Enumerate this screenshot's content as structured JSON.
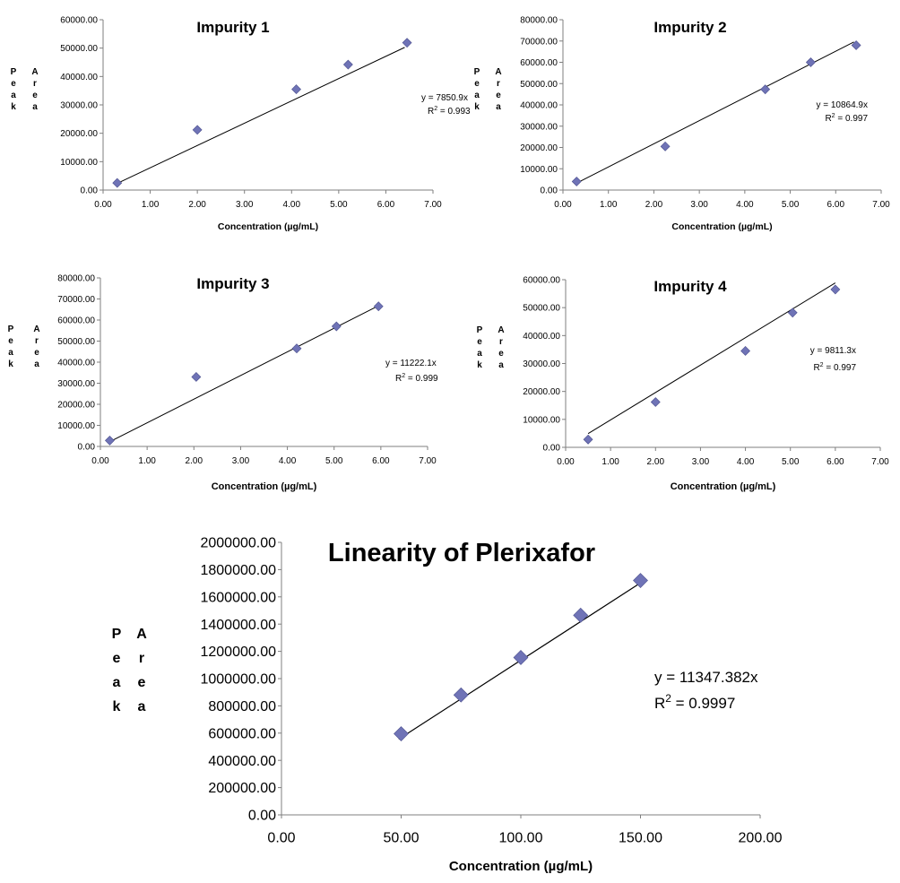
{
  "chart_data": [
    {
      "type": "scatter",
      "title": "Impurity 1",
      "xlabel": "Concentration (µg/mL)",
      "ylabel_left": [
        "P",
        "e",
        "a",
        "k"
      ],
      "ylabel_right": [
        "A",
        "r",
        "e",
        "a"
      ],
      "xlim": [
        0,
        7
      ],
      "ylim": [
        0,
        60000
      ],
      "x_ticks": [
        "0.00",
        "1.00",
        "2.00",
        "3.00",
        "4.00",
        "5.00",
        "6.00",
        "7.00"
      ],
      "y_ticks": [
        "0.00",
        "10000.00",
        "20000.00",
        "30000.00",
        "40000.00",
        "50000.00",
        "60000.00"
      ],
      "series": [
        {
          "x": [
            0.3,
            2.0,
            4.1,
            5.2,
            6.45
          ],
          "y": [
            2500,
            21200,
            35500,
            44200,
            51900
          ]
        }
      ],
      "trendline": {
        "slope": 7850.9,
        "x_range": [
          0.25,
          6.4
        ]
      },
      "equation": "y = 7850.9x",
      "r2_value": " = 0.993",
      "grid": false,
      "marker_color": "#6f73b6"
    },
    {
      "type": "scatter",
      "title": "Impurity 2",
      "xlabel": "Concentration (µg/mL)",
      "ylabel_left": [
        "P",
        "e",
        "a",
        "k"
      ],
      "ylabel_right": [
        "A",
        "r",
        "e",
        "a"
      ],
      "xlim": [
        0,
        7
      ],
      "ylim": [
        0,
        80000
      ],
      "x_ticks": [
        "0.00",
        "1.00",
        "2.00",
        "3.00",
        "4.00",
        "5.00",
        "6.00",
        "7.00"
      ],
      "y_ticks": [
        "0.00",
        "10000.00",
        "20000.00",
        "30000.00",
        "40000.00",
        "50000.00",
        "60000.00",
        "70000.00",
        "80000.00"
      ],
      "series": [
        {
          "x": [
            0.3,
            2.25,
            4.45,
            5.45,
            6.45
          ],
          "y": [
            4000,
            20500,
            47300,
            60000,
            68000
          ]
        }
      ],
      "trendline": {
        "slope": 10864.9,
        "x_range": [
          0.3,
          6.4
        ]
      },
      "equation": "y = 10864.9x",
      "r2_value": " = 0.997",
      "grid": false,
      "marker_color": "#6f73b6"
    },
    {
      "type": "scatter",
      "title": "Impurity 3",
      "xlabel": "Concentration (µg/mL)",
      "ylabel_left": [
        "P",
        "e",
        "a",
        "k"
      ],
      "ylabel_right": [
        "A",
        "r",
        "e",
        "a"
      ],
      "xlim": [
        0,
        7
      ],
      "ylim": [
        0,
        80000
      ],
      "x_ticks": [
        "0.00",
        "1.00",
        "2.00",
        "3.00",
        "4.00",
        "5.00",
        "6.00",
        "7.00"
      ],
      "y_ticks": [
        "0.00",
        "10000.00",
        "20000.00",
        "30000.00",
        "40000.00",
        "50000.00",
        "60000.00",
        "70000.00",
        "80000.00"
      ],
      "series": [
        {
          "x": [
            0.2,
            2.05,
            4.2,
            5.05,
            5.95
          ],
          "y": [
            2800,
            33000,
            46500,
            57000,
            66500
          ]
        }
      ],
      "trendline": {
        "slope": 11222.1,
        "x_range": [
          0.2,
          5.95
        ]
      },
      "equation": "y = 11222.1x",
      "r2_value": " = 0.999",
      "grid": false,
      "marker_color": "#6f73b6"
    },
    {
      "type": "scatter",
      "title": "Impurity 4",
      "xlabel": "Concentration (µg/mL)",
      "ylabel_left": [
        "P",
        "e",
        "a",
        "k"
      ],
      "ylabel_right": [
        "A",
        "r",
        "e",
        "a"
      ],
      "xlim": [
        0,
        7
      ],
      "ylim": [
        0,
        60000
      ],
      "x_ticks": [
        "0.00",
        "1.00",
        "2.00",
        "3.00",
        "4.00",
        "5.00",
        "6.00",
        "7.00"
      ],
      "y_ticks": [
        "0.00",
        "10000.00",
        "20000.00",
        "30000.00",
        "40000.00",
        "50000.00",
        "60000.00"
      ],
      "series": [
        {
          "x": [
            0.5,
            2.0,
            4.0,
            5.05,
            6.0
          ],
          "y": [
            2800,
            16200,
            34500,
            48200,
            56500
          ]
        }
      ],
      "trendline": {
        "slope": 9811.3,
        "x_range": [
          0.5,
          6.0
        ]
      },
      "equation": "y = 9811.3x",
      "r2_value": " = 0.997",
      "grid": false,
      "marker_color": "#6f73b6"
    },
    {
      "type": "scatter",
      "title": "Linearity of Plerixafor",
      "xlabel": "Concentration (µg/mL)",
      "ylabel_left": [
        "P",
        "e",
        "a",
        "k"
      ],
      "ylabel_right": [
        "A",
        "r",
        "e",
        "a"
      ],
      "xlim": [
        0,
        200
      ],
      "ylim": [
        0,
        2000000
      ],
      "x_ticks": [
        "0.00",
        "50.00",
        "100.00",
        "150.00",
        "200.00"
      ],
      "y_ticks": [
        "0.00",
        "200000.00",
        "400000.00",
        "600000.00",
        "800000.00",
        "1000000.00",
        "1200000.00",
        "1400000.00",
        "1600000.00",
        "1800000.00",
        "2000000.00"
      ],
      "series": [
        {
          "x": [
            50,
            75,
            100,
            125,
            150
          ],
          "y": [
            595000,
            880000,
            1155000,
            1465000,
            1720000
          ]
        }
      ],
      "trendline": {
        "slope": 11347.382,
        "x_range": [
          49,
          151
        ]
      },
      "equation": "y = 11347.382x",
      "r2_value": " = 0.9997",
      "grid": false,
      "marker_color": "#6f73b6"
    }
  ]
}
